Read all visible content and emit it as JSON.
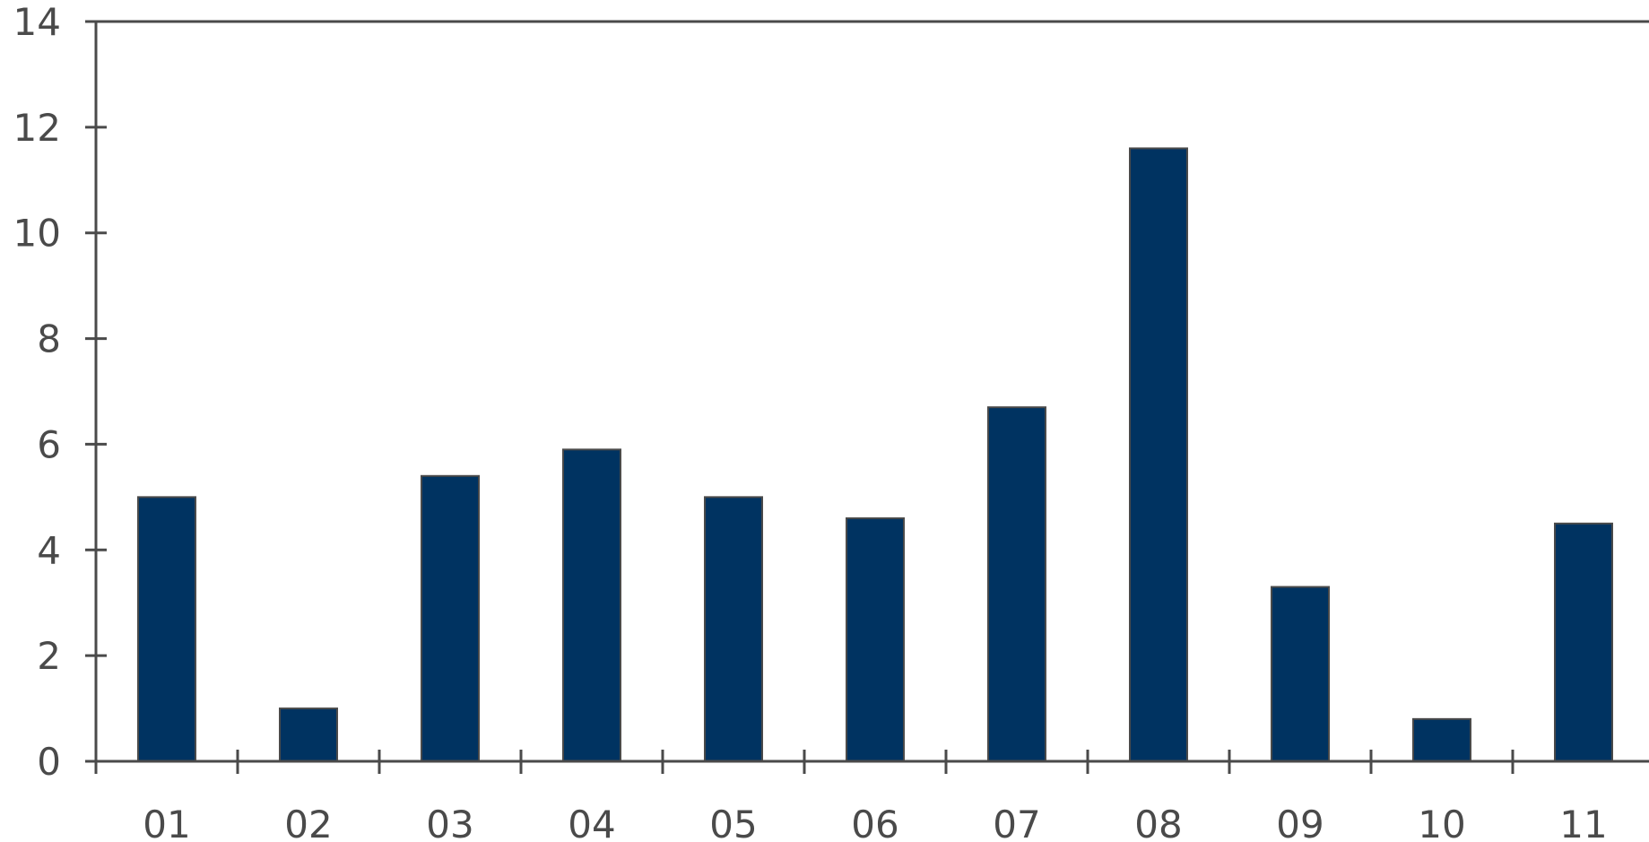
{
  "chart_data": {
    "type": "bar",
    "categories": [
      "01",
      "02",
      "03",
      "04",
      "05",
      "06",
      "07",
      "08",
      "09",
      "10",
      "11"
    ],
    "values": [
      5.0,
      1.0,
      5.4,
      5.9,
      5.0,
      4.6,
      6.7,
      11.6,
      3.3,
      0.8,
      4.5
    ],
    "ylim": [
      0,
      14
    ],
    "yticks": [
      0,
      2,
      4,
      6,
      8,
      10,
      12,
      14
    ],
    "grid": false,
    "legend": "none",
    "title": "",
    "xlabel": "",
    "ylabel": ""
  },
  "colors": {
    "bar": "#003361",
    "bar_border": "#4a4a4a",
    "axis": "#4a4a4a",
    "text": "#4a4a4a"
  }
}
